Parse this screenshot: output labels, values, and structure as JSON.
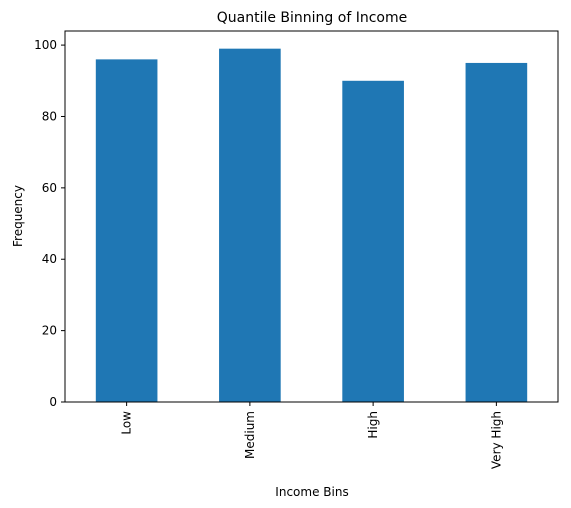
{
  "chart_data": {
    "type": "bar",
    "title": "Quantile Binning of Income",
    "xlabel": "Income Bins",
    "ylabel": "Frequency",
    "categories": [
      "Low",
      "Medium",
      "High",
      "Very High"
    ],
    "values": [
      96,
      99,
      90,
      95
    ],
    "ylim": [
      0,
      103.95
    ],
    "yticks": [
      0,
      20,
      40,
      60,
      80,
      100
    ],
    "grid": false,
    "legend": "none",
    "colors": {
      "bar": "#1f77b4",
      "axis": "#000000",
      "background": "#ffffff"
    }
  }
}
